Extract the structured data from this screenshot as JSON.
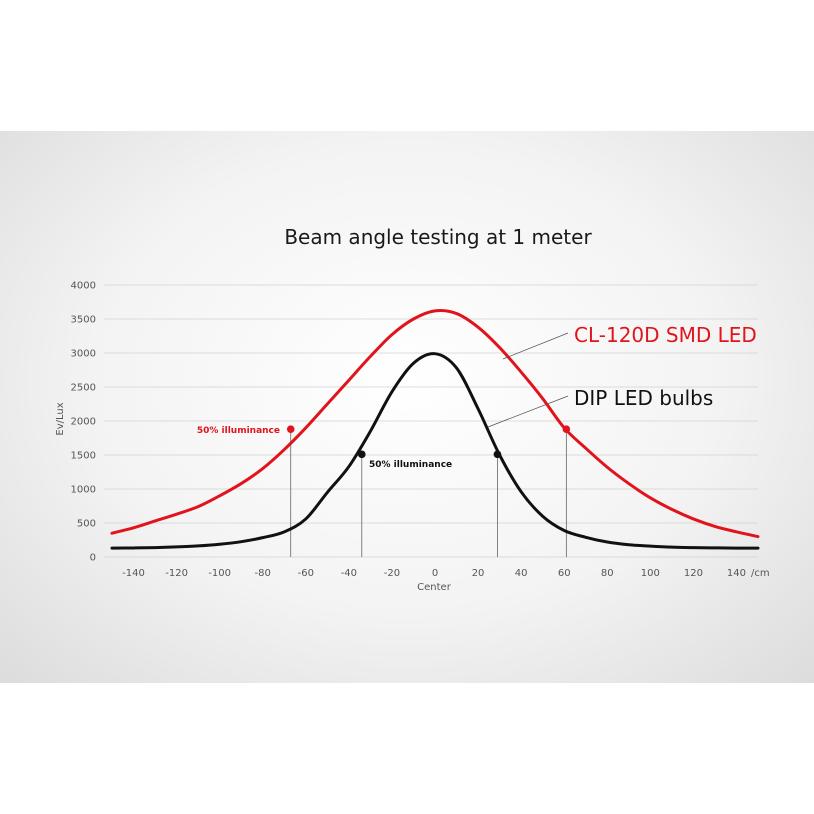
{
  "chart_data": {
    "type": "line",
    "title": "Beam angle testing at 1 meter",
    "xlabel": "Center",
    "x_unit_label": "/cm",
    "ylabel": "Ev/Lux",
    "xlim": [
      -150,
      150
    ],
    "ylim": [
      0,
      4000
    ],
    "x_ticks": [
      -140,
      -120,
      -100,
      -80,
      -60,
      -40,
      -20,
      0,
      20,
      40,
      60,
      80,
      100,
      120,
      140
    ],
    "y_ticks": [
      0,
      500,
      1000,
      1500,
      2000,
      2500,
      3000,
      3500,
      4000
    ],
    "grid": true,
    "series": [
      {
        "name": "CL-120D SMD LED",
        "color": "#e1141c",
        "x": [
          -150,
          -140,
          -130,
          -120,
          -110,
          -100,
          -90,
          -80,
          -70,
          -60,
          -50,
          -40,
          -30,
          -20,
          -10,
          0,
          10,
          20,
          30,
          40,
          50,
          60,
          70,
          80,
          90,
          100,
          110,
          120,
          130,
          140,
          150
        ],
        "y": [
          350,
          430,
          530,
          630,
          740,
          900,
          1080,
          1300,
          1580,
          1900,
          2250,
          2600,
          2950,
          3270,
          3500,
          3620,
          3580,
          3380,
          3080,
          2720,
          2330,
          1900,
          1600,
          1320,
          1080,
          870,
          700,
          560,
          450,
          370,
          300
        ]
      },
      {
        "name": "DIP LED bulbs",
        "color": "#111111",
        "x": [
          -150,
          -140,
          -130,
          -120,
          -110,
          -100,
          -90,
          -80,
          -70,
          -60,
          -50,
          -40,
          -30,
          -20,
          -10,
          0,
          10,
          20,
          30,
          40,
          50,
          60,
          70,
          80,
          90,
          100,
          110,
          120,
          130,
          140,
          150
        ],
        "y": [
          130,
          133,
          138,
          148,
          163,
          188,
          225,
          285,
          370,
          560,
          950,
          1330,
          1850,
          2430,
          2850,
          2990,
          2780,
          2180,
          1500,
          960,
          600,
          390,
          290,
          220,
          180,
          160,
          145,
          138,
          134,
          131,
          130
        ]
      }
    ],
    "markers": [
      {
        "series": "CL-120D SMD LED",
        "x": -67,
        "y": 1880
      },
      {
        "series": "CL-120D SMD LED",
        "x": 61,
        "y": 1880
      },
      {
        "series": "DIP LED bulbs",
        "x": -34,
        "y": 1510
      },
      {
        "series": "DIP LED bulbs",
        "x": 29,
        "y": 1510
      }
    ],
    "annotations": [
      {
        "text": "50% illuminance",
        "series": "CL-120D SMD LED"
      },
      {
        "text": "50% illuminance",
        "series": "DIP LED bulbs"
      }
    ]
  }
}
